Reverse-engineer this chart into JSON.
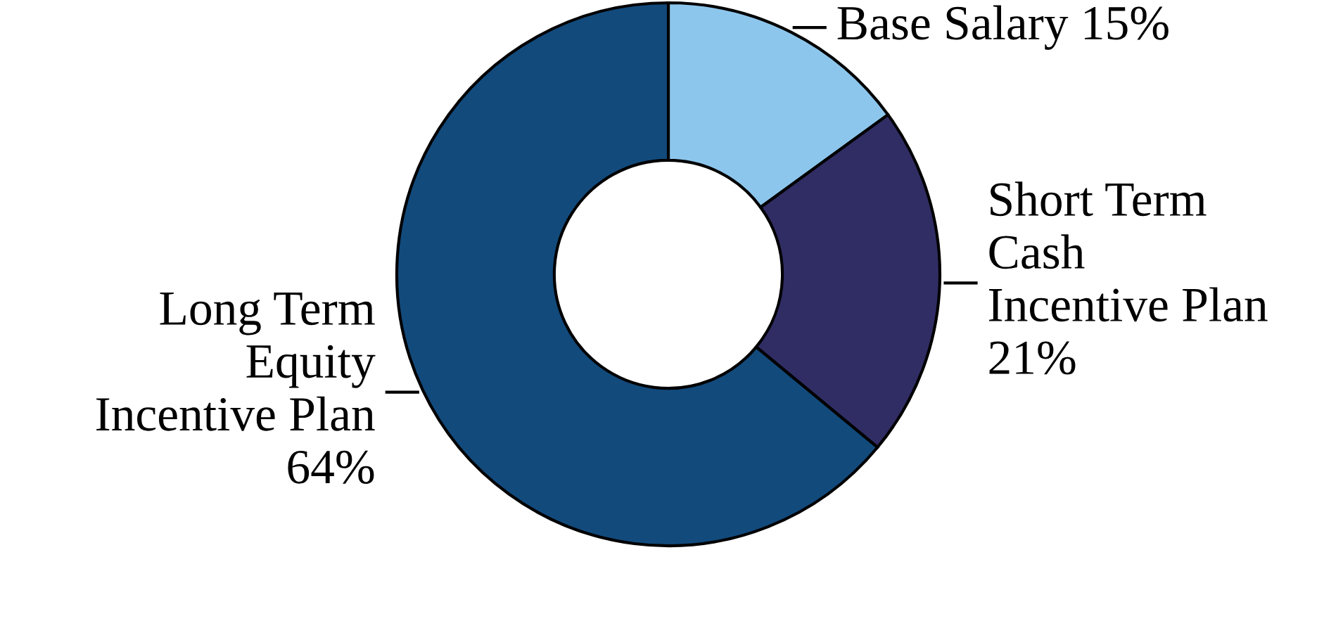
{
  "chart_data": {
    "type": "donut",
    "categories": [
      "Base Salary",
      "Short Term\nCash\nIncentive Plan",
      "Long Term\nEquity\nIncentive Plan"
    ],
    "values": [
      15,
      21,
      64
    ],
    "value_labels": [
      "15%",
      "21%",
      "64%"
    ],
    "colors": [
      "#8dc6ec",
      "#302d64",
      "#124a7c"
    ]
  }
}
